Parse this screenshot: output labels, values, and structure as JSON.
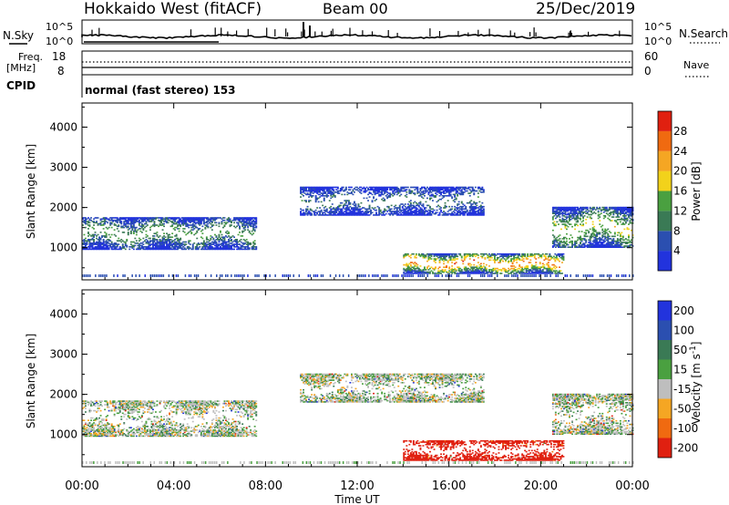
{
  "header": {
    "station": "Hokkaido West (fitACF)",
    "beam": "Beam 00",
    "date": "25/Dec/2019"
  },
  "noise_panel": {
    "left_label": "N.Sky",
    "right_label": "N.Search",
    "left_ticks": [
      "10^5",
      "10^0"
    ],
    "right_ticks": [
      "10^5",
      "10^0"
    ]
  },
  "freq_panel": {
    "left_label_1": "Freq.",
    "left_label_2": "[MHz]",
    "left_ticks": [
      "18",
      "8"
    ],
    "right_label": "Nave",
    "right_ticks": [
      "60",
      "0"
    ]
  },
  "cpid": {
    "label": "CPID",
    "text": "normal (fast stereo) 153"
  },
  "colors": {
    "power_scale": [
      "#2233dd",
      "#2b4fb0",
      "#3a7a55",
      "#4aa040",
      "#f2d21b",
      "#f5a623",
      "#f06a10",
      "#e02010"
    ],
    "velocity_scale": [
      "#2233dd",
      "#2b4fb0",
      "#3a7a55",
      "#4aa040",
      "#bebebe",
      "#f5a623",
      "#f06a10",
      "#e02010"
    ]
  },
  "chart_data": [
    {
      "type": "heatmap",
      "panel": "power",
      "ylabel": "Slant Range [km]",
      "yticks": [
        "1000",
        "2000",
        "3000",
        "4000"
      ],
      "ylim": [
        200,
        4600
      ],
      "xlim_hours": [
        0,
        24
      ],
      "colorbar": {
        "label": "Power [dB]",
        "ticks": [
          "4",
          "8",
          "12",
          "16",
          "20",
          "24",
          "28"
        ],
        "range": [
          0,
          32
        ]
      },
      "echo_regions": [
        {
          "t_start": 0.0,
          "t_end": 7.6,
          "range_center": 1350,
          "range_width": 400,
          "value": 14
        },
        {
          "t_start": 9.5,
          "t_end": 17.5,
          "range_center": 2150,
          "range_width": 350,
          "value": 10
        },
        {
          "t_start": 14.0,
          "t_end": 21.0,
          "range_center": 600,
          "range_width": 250,
          "value": 28
        },
        {
          "t_start": 20.5,
          "t_end": 24.0,
          "range_center": 1500,
          "range_width": 500,
          "value": 18
        }
      ]
    },
    {
      "type": "heatmap",
      "panel": "velocity",
      "ylabel": "Slant Range [km]",
      "yticks": [
        "1000",
        "2000",
        "3000",
        "4000"
      ],
      "ylim": [
        200,
        4600
      ],
      "xlim_hours": [
        0,
        24
      ],
      "xtick_labels": [
        "00:00",
        "04:00",
        "08:00",
        "12:00",
        "16:00",
        "20:00",
        "00:00"
      ],
      "xlabel": "Time UT",
      "colorbar": {
        "label": "Velocity [m s^-1]",
        "ticks": [
          "200",
          "100",
          "50",
          "15",
          "-15",
          "-50",
          "-100",
          "-200"
        ]
      },
      "echo_regions": [
        {
          "t_start": 0.0,
          "t_end": 7.6,
          "range_center": 1400,
          "range_width": 450,
          "value": 0
        },
        {
          "t_start": 9.5,
          "t_end": 17.5,
          "range_center": 2150,
          "range_width": 350,
          "value": 0
        },
        {
          "t_start": 14.0,
          "t_end": 21.0,
          "range_center": 600,
          "range_width": 250,
          "value": -120
        },
        {
          "t_start": 20.5,
          "t_end": 24.0,
          "range_center": 1500,
          "range_width": 500,
          "value": 0
        }
      ]
    }
  ]
}
